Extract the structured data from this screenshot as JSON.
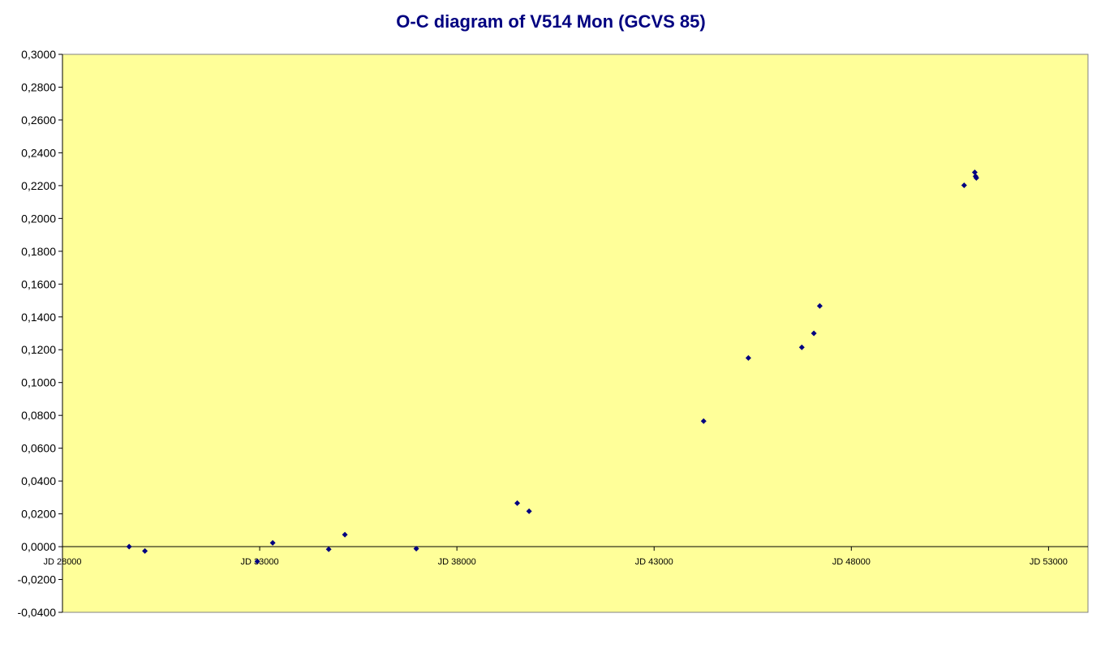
{
  "chart_data": {
    "type": "scatter",
    "title": "O-C diagram of V514 Mon  (GCVS 85)",
    "xlabel": "",
    "ylabel": "",
    "xlim": [
      28000,
      54000
    ],
    "ylim": [
      -0.04,
      0.3
    ],
    "x_ticks": [
      28000,
      33000,
      38000,
      43000,
      48000,
      53000
    ],
    "x_tick_labels": [
      "JD 28000",
      "JD 33000",
      "JD 38000",
      "JD 43000",
      "JD 48000",
      "JD 53000"
    ],
    "y_ticks": [
      -0.04,
      -0.02,
      0,
      0.02,
      0.04,
      0.06,
      0.08,
      0.1,
      0.12,
      0.14,
      0.16,
      0.18,
      0.2,
      0.22,
      0.24,
      0.26,
      0.28,
      0.3
    ],
    "y_tick_labels": [
      "-0,0400",
      "-0,0200",
      "0,0000",
      "0,0200",
      "0,0400",
      "0,0600",
      "0,0800",
      "0,1000",
      "0,1200",
      "0,1400",
      "0,1600",
      "0,1800",
      "0,2000",
      "0,2200",
      "0,2400",
      "0,2600",
      "0,2800",
      "0,3000"
    ],
    "grid": false,
    "legend": "none",
    "colors": {
      "plot_background": "#FFFF99",
      "marker": "#000080",
      "title": "#000080"
    },
    "marker": "diamond",
    "points": [
      {
        "x": 29690,
        "y": 0.0
      },
      {
        "x": 30090,
        "y": -0.0026
      },
      {
        "x": 32940,
        "y": -0.009
      },
      {
        "x": 33330,
        "y": 0.0023
      },
      {
        "x": 34750,
        "y": -0.0016
      },
      {
        "x": 35160,
        "y": 0.0073
      },
      {
        "x": 36970,
        "y": -0.0012
      },
      {
        "x": 39530,
        "y": 0.0265
      },
      {
        "x": 39830,
        "y": 0.0216
      },
      {
        "x": 44255,
        "y": 0.0765
      },
      {
        "x": 45390,
        "y": 0.115
      },
      {
        "x": 46745,
        "y": 0.1215
      },
      {
        "x": 47050,
        "y": 0.13
      },
      {
        "x": 47200,
        "y": 0.1467
      },
      {
        "x": 50860,
        "y": 0.2202
      },
      {
        "x": 51130,
        "y": 0.2281
      },
      {
        "x": 51150,
        "y": 0.2257
      },
      {
        "x": 51170,
        "y": 0.2247
      }
    ]
  }
}
